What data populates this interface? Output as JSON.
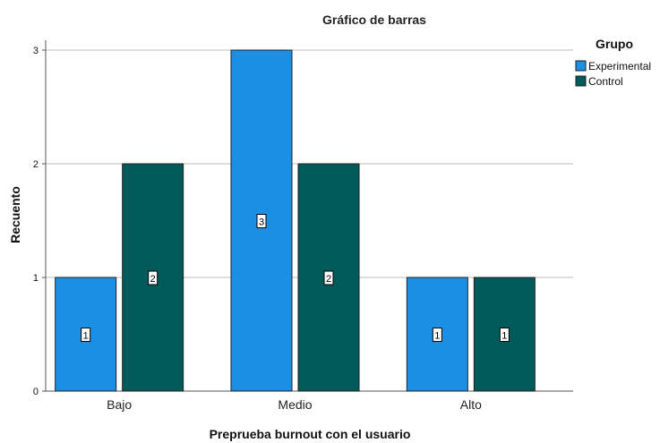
{
  "chart_data": {
    "type": "bar",
    "title": "Gráfico de barras",
    "xlabel": "Preprueba burnout con el usuario",
    "ylabel": "Recuento",
    "categories": [
      "Bajo",
      "Medio",
      "Alto"
    ],
    "series": [
      {
        "name": "Experimental",
        "values": [
          1,
          3,
          1
        ],
        "color": "#1a8fe3"
      },
      {
        "name": "Control",
        "values": [
          2,
          2,
          1
        ],
        "color": "#005a5a"
      }
    ],
    "ylim": [
      0,
      3
    ],
    "yticks": [
      "0",
      "1",
      "2",
      "3"
    ],
    "grid": true,
    "legend_title": "Grupo",
    "legend_position": "top-right"
  }
}
